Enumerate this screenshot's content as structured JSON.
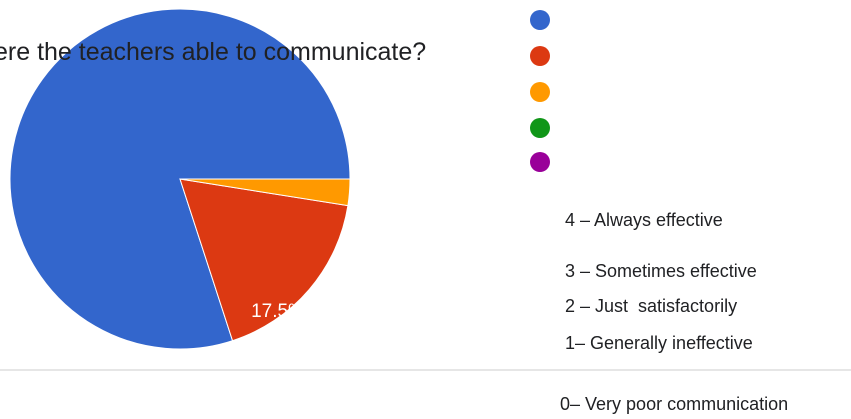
{
  "title": "ere the teachers able to communicate?",
  "colors": {
    "blue": "#3366cc",
    "red": "#dc3912",
    "orange": "#ff9900",
    "green": "#109618",
    "purple": "#990099"
  },
  "chart_data": {
    "type": "pie",
    "title": "ere the teachers able to communicate?",
    "slices": [
      {
        "value": 80,
        "color": "#3366cc",
        "label": ""
      },
      {
        "value": 17.5,
        "color": "#dc3912",
        "label": "17.5%"
      },
      {
        "value": 2.5,
        "color": "#ff9900",
        "label": ""
      }
    ],
    "legend_colors": [
      "#3366cc",
      "#dc3912",
      "#ff9900",
      "#109618",
      "#990099"
    ],
    "legend_placement": "right"
  },
  "legend_labels": [
    "4 – Always effective",
    "3 – Sometimes effective",
    "2 – Just  satisfactorily",
    "1– Generally ineffective",
    "0– Very poor communication"
  ]
}
